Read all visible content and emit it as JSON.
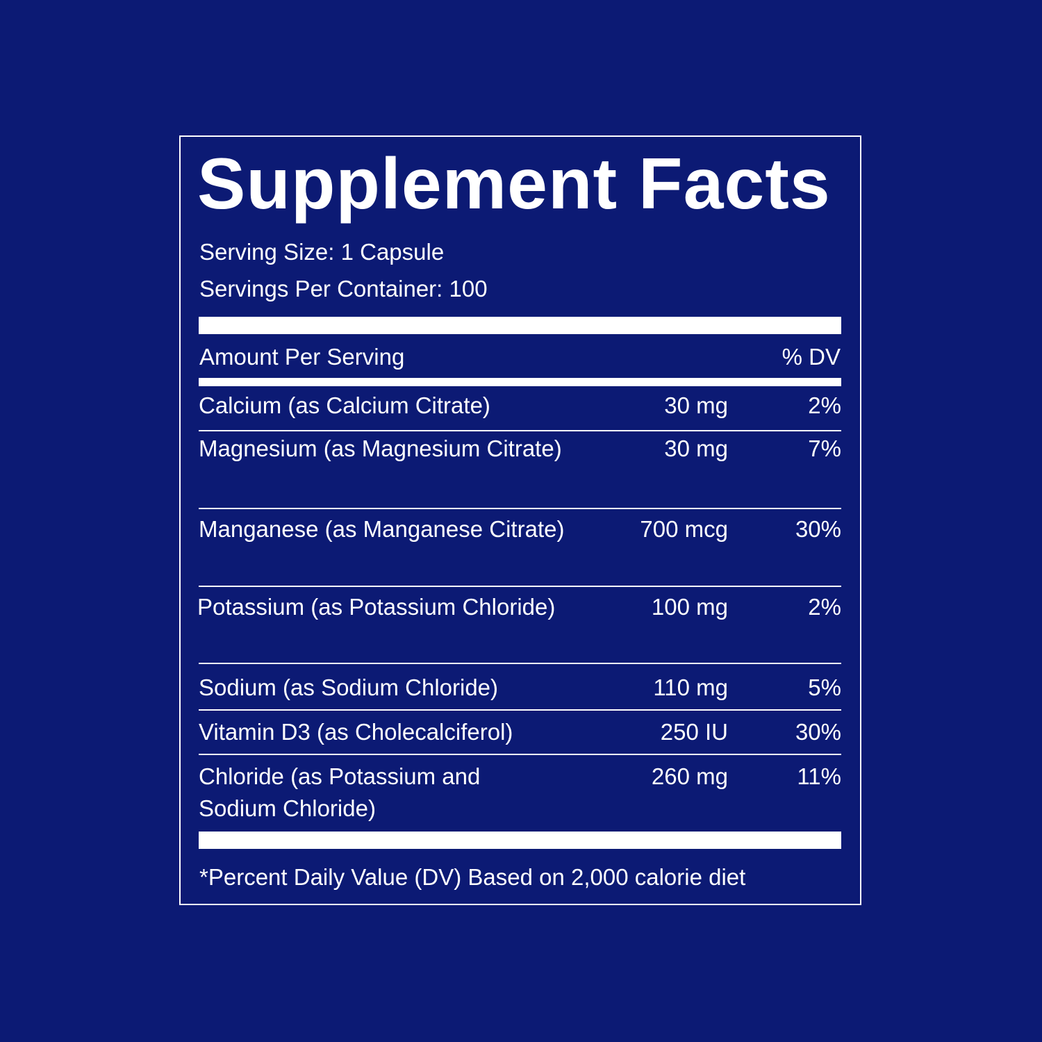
{
  "label": {
    "title": "Supplement Facts",
    "serving_size": "Serving Size: 1 Capsule",
    "servings_per_container": "Servings Per Container: 100",
    "amount_header": "Amount Per Serving",
    "dv_header": "% DV",
    "nutrients": [
      {
        "name": "Calcium (as Calcium Citrate)",
        "amount": "30 mg",
        "dv": "2%"
      },
      {
        "name": "Magnesium (as Magnesium Citrate)",
        "amount": "30 mg",
        "dv": "7%"
      },
      {
        "name": "Manganese (as Manganese Citrate)",
        "amount": "700 mcg",
        "dv": "30%"
      },
      {
        "name": "Potassium (as Potassium Chloride)",
        "amount": "100 mg",
        "dv": "2%"
      },
      {
        "name": "Sodium (as Sodium Chloride)",
        "amount": "110 mg",
        "dv": "5%"
      },
      {
        "name": "Vitamin D3 (as Cholecalciferol)",
        "amount": "250 IU",
        "dv": "30%"
      },
      {
        "name": "Chloride (as Potassium and Sodium Chloride)",
        "amount": "260 mg",
        "dv": "11%"
      }
    ],
    "footnote": "*Percent Daily Value (DV) Based on 2,000 calorie diet"
  },
  "colors": {
    "background": "#0c1a74",
    "foreground": "#ffffff"
  }
}
